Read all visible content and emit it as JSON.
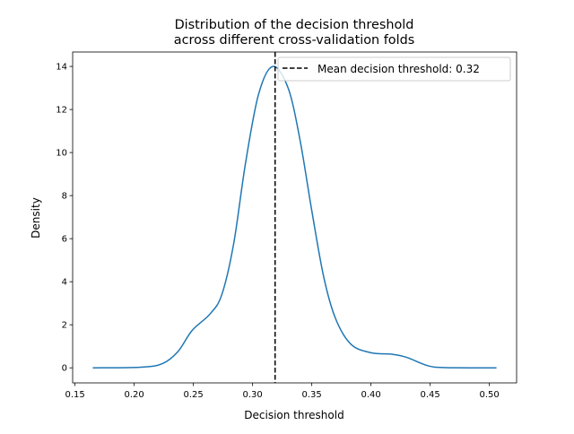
{
  "chart_data": {
    "type": "line",
    "title": "Distribution of the decision threshold\nacross different cross-validation folds",
    "title_lines": [
      "Distribution of the decision threshold",
      "across different cross-validation folds"
    ],
    "xlabel": "Decision threshold",
    "ylabel": "Density",
    "xlim": [
      0.148,
      0.523
    ],
    "ylim": [
      -0.7,
      14.67
    ],
    "xticks": [
      0.15,
      0.2,
      0.25,
      0.3,
      0.35,
      0.4,
      0.45,
      0.5
    ],
    "xtick_labels": [
      "0.15",
      "0.20",
      "0.25",
      "0.30",
      "0.35",
      "0.40",
      "0.45",
      "0.50"
    ],
    "yticks": [
      0,
      2,
      4,
      6,
      8,
      10,
      12,
      14
    ],
    "ytick_labels": [
      "0",
      "2",
      "4",
      "6",
      "8",
      "10",
      "12",
      "14"
    ],
    "grid": false,
    "legend_placement": "upper right",
    "series": [
      {
        "color": "#1f77b4",
        "x": [
          0.165,
          0.206,
          0.224,
          0.237,
          0.249,
          0.264,
          0.274,
          0.284,
          0.294,
          0.305,
          0.317,
          0.33,
          0.34,
          0.35,
          0.36,
          0.37,
          0.383,
          0.4,
          0.418,
          0.43,
          0.448,
          0.463,
          0.506
        ],
        "y": [
          0,
          0.03,
          0.2,
          0.76,
          1.74,
          2.5,
          3.4,
          5.76,
          9.5,
          12.7,
          14.0,
          13.0,
          10.6,
          7.3,
          4.24,
          2.3,
          1.1,
          0.7,
          0.63,
          0.49,
          0.1,
          0.01,
          0
        ]
      }
    ],
    "vline": {
      "x": 0.319,
      "color": "#000000",
      "style": "dashed",
      "name": "Mean decision threshold: 0.32"
    }
  }
}
